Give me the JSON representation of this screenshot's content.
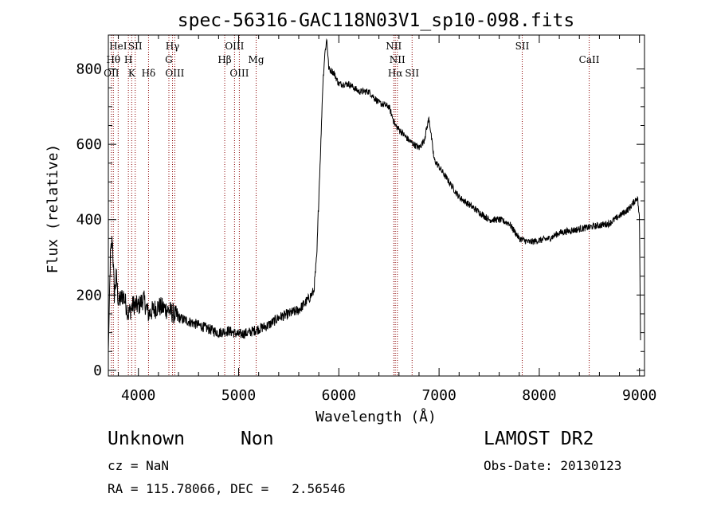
{
  "chart_data": {
    "type": "line",
    "title": "spec-56316-GAC118N03V1_sp10-098.fits",
    "xlabel": "Wavelength (Å)",
    "ylabel": "Flux (relative)",
    "xlim": [
      3700,
      9050
    ],
    "ylim": [
      -15,
      890
    ],
    "x_ticks": [
      4000,
      5000,
      6000,
      7000,
      8000,
      9000
    ],
    "y_ticks": [
      0,
      200,
      400,
      600,
      800
    ],
    "x_tick_labels": [
      "4000",
      "5000",
      "6000",
      "7000",
      "8000",
      "9000"
    ],
    "y_tick_labels": [
      "0",
      "200",
      "400",
      "600",
      "800"
    ],
    "line_color": "#000000",
    "marker_color": "#8b0000",
    "grid": false,
    "series": [
      {
        "x": [
          3700,
          3720,
          3740,
          3760,
          3780,
          3800,
          3850,
          3900,
          3950,
          4000,
          4050,
          4100,
          4200,
          4300,
          4400,
          4500,
          4600,
          4700,
          4800,
          4900,
          5000,
          5100,
          5200,
          5300,
          5400,
          5500,
          5600,
          5700,
          5750,
          5780,
          5800,
          5820,
          5840,
          5860,
          5880,
          5900,
          5950,
          6000,
          6100,
          6200,
          6300,
          6400,
          6500,
          6563,
          6600,
          6700,
          6800,
          6850,
          6900,
          6950,
          7000,
          7100,
          7200,
          7300,
          7400,
          7500,
          7600,
          7700,
          7800,
          7900,
          8000,
          8100,
          8200,
          8300,
          8400,
          8500,
          8600,
          8700,
          8800,
          8900,
          8980,
          9000,
          9010
        ],
        "y": [
          50,
          300,
          350,
          200,
          250,
          180,
          200,
          150,
          175,
          170,
          190,
          150,
          170,
          160,
          140,
          130,
          120,
          110,
          100,
          105,
          95,
          100,
          110,
          120,
          140,
          150,
          160,
          190,
          210,
          300,
          460,
          600,
          760,
          840,
          880,
          800,
          790,
          760,
          760,
          740,
          740,
          710,
          700,
          650,
          640,
          610,
          590,
          610,
          670,
          560,
          540,
          500,
          460,
          440,
          420,
          400,
          400,
          390,
          350,
          340,
          345,
          350,
          365,
          370,
          375,
          380,
          385,
          390,
          410,
          430,
          460,
          400,
          80
        ]
      }
    ],
    "lines": [
      {
        "x": 3750,
        "label": "Hθ",
        "row": 2
      },
      {
        "x": 3730,
        "label": "OII",
        "row": 3
      },
      {
        "x": 3798,
        "label": "HeI",
        "row": 1
      },
      {
        "x": 3900,
        "label": "H",
        "row": 2
      },
      {
        "x": 3933,
        "label": "K",
        "row": 3
      },
      {
        "x": 3968,
        "label": "SII",
        "row": 1
      },
      {
        "x": 4101,
        "label": "Hδ",
        "row": 3
      },
      {
        "x": 4304,
        "label": "G",
        "row": 2
      },
      {
        "x": 4340,
        "label": "Hγ",
        "row": 1
      },
      {
        "x": 4363,
        "label": "OIII",
        "row": 3
      },
      {
        "x": 4861,
        "label": "Hβ",
        "row": 2
      },
      {
        "x": 4959,
        "label": "OIII",
        "row": 1
      },
      {
        "x": 5007,
        "label": "OIII",
        "row": 3
      },
      {
        "x": 5175,
        "label": "Mg",
        "row": 2
      },
      {
        "x": 6548,
        "label": "NII",
        "row": 1
      },
      {
        "x": 6563,
        "label": "Hα",
        "row": 3
      },
      {
        "x": 6584,
        "label": "NII",
        "row": 2
      },
      {
        "x": 6731,
        "label": "SII",
        "row": 3
      },
      {
        "x": 7830,
        "label": "SII",
        "row": 1
      },
      {
        "x": 8498,
        "label": "CaII",
        "row": 2
      }
    ]
  },
  "info": {
    "class": "Unknown",
    "subclass": "Non",
    "survey": "LAMOST DR2",
    "cz": "cz = NaN",
    "obs_date": "Obs-Date: 20130123",
    "coords": "RA = 115.78066, DEC =   2.56546"
  }
}
